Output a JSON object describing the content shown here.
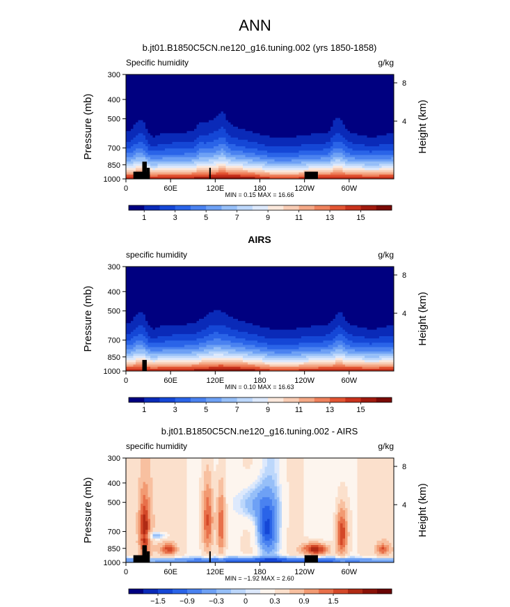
{
  "page_title": "ANN",
  "colors": {
    "abs": [
      "#000080",
      "#0a2ab8",
      "#1547d6",
      "#2a64e8",
      "#4a82f0",
      "#6ea1f5",
      "#96bff8",
      "#bcd7fb",
      "#dde9fc",
      "#fbe8dc",
      "#f8ccb4",
      "#f4a886",
      "#ee815c",
      "#e25533",
      "#c8321c",
      "#a01a0e",
      "#7a0a06"
    ],
    "diff": [
      "#000080",
      "#0a2ab8",
      "#1547d6",
      "#2a64e8",
      "#4a82f0",
      "#6ea1f5",
      "#96bff8",
      "#bcd7fb",
      "#dde9fc",
      "#fdf5ee",
      "#fbe0cc",
      "#f8c0a0",
      "#f29a72",
      "#e8704a",
      "#d44828",
      "#b02a14",
      "#8a1208",
      "#6a0404"
    ]
  },
  "chart_data": [
    {
      "type": "heatmap",
      "id": "model",
      "title": "b.jt01.B1850C5CN.ne120_g16.tuning.002 (yrs 1850-1858)",
      "left_label": "Specific humidity",
      "unit": "g/kg",
      "ylabel": "Pressure (mb)",
      "ylabel_right": "Height (km)",
      "yticks": [
        300,
        400,
        500,
        700,
        850,
        1000
      ],
      "height_ticks": [
        "8",
        "4"
      ],
      "xticks": [
        "0",
        "60E",
        "120E",
        "180",
        "120W",
        "60W"
      ],
      "x_values": [
        0,
        60,
        120,
        180,
        240,
        300
      ],
      "xlim": [
        0,
        360
      ],
      "ylim": [
        1000,
        300
      ],
      "stats": "MIN =    0.15   MAX =   16.66",
      "colorbar_labels": [
        "1",
        "3",
        "5",
        "7",
        "9",
        "11",
        "13",
        "15"
      ],
      "levels": [
        1,
        2,
        3,
        4,
        5,
        6,
        7,
        8,
        9,
        10,
        11,
        12,
        13,
        14,
        15,
        16
      ]
    },
    {
      "type": "heatmap",
      "id": "obs",
      "title": "AIRS",
      "left_label": "specific humidity",
      "unit": "g/kg",
      "ylabel": "Pressure (mb)",
      "ylabel_right": "Height (km)",
      "yticks": [
        300,
        400,
        500,
        700,
        850,
        1000
      ],
      "height_ticks": [
        "8",
        "4"
      ],
      "xticks": [
        "0",
        "60E",
        "120E",
        "180",
        "120W",
        "60W"
      ],
      "x_values": [
        0,
        60,
        120,
        180,
        240,
        300
      ],
      "xlim": [
        0,
        360
      ],
      "ylim": [
        1000,
        300
      ],
      "stats": "MIN =    0.10   MAX =   16.63",
      "colorbar_labels": [
        "1",
        "3",
        "5",
        "7",
        "9",
        "11",
        "13",
        "15"
      ],
      "levels": [
        1,
        2,
        3,
        4,
        5,
        6,
        7,
        8,
        9,
        10,
        11,
        12,
        13,
        14,
        15,
        16
      ]
    },
    {
      "type": "heatmap",
      "id": "diff",
      "title": "b.jt01.B1850C5CN.ne120_g16.tuning.002 - AIRS",
      "left_label": "specific humidity",
      "unit": "g/kg",
      "ylabel": "Pressure (mb)",
      "ylabel_right": "Height (km)",
      "yticks": [
        300,
        400,
        500,
        700,
        850,
        1000
      ],
      "height_ticks": [
        "8",
        "4"
      ],
      "xticks": [
        "0",
        "60E",
        "120E",
        "180",
        "120W",
        "60W"
      ],
      "x_values": [
        0,
        60,
        120,
        180,
        240,
        300
      ],
      "xlim": [
        0,
        360
      ],
      "ylim": [
        1000,
        300
      ],
      "stats": "MIN =   −1.92   MAX =   2.60",
      "colorbar_labels": [
        "−1.5",
        "−0.9",
        "−0.3",
        "0",
        "0.3",
        "0.9",
        "1.5"
      ],
      "levels": [
        -1.8,
        -1.5,
        -1.2,
        -0.9,
        -0.6,
        -0.3,
        -0.1,
        0,
        0.1,
        0.3,
        0.6,
        0.9,
        1.2,
        1.5,
        1.8,
        2.1,
        2.4
      ]
    }
  ]
}
